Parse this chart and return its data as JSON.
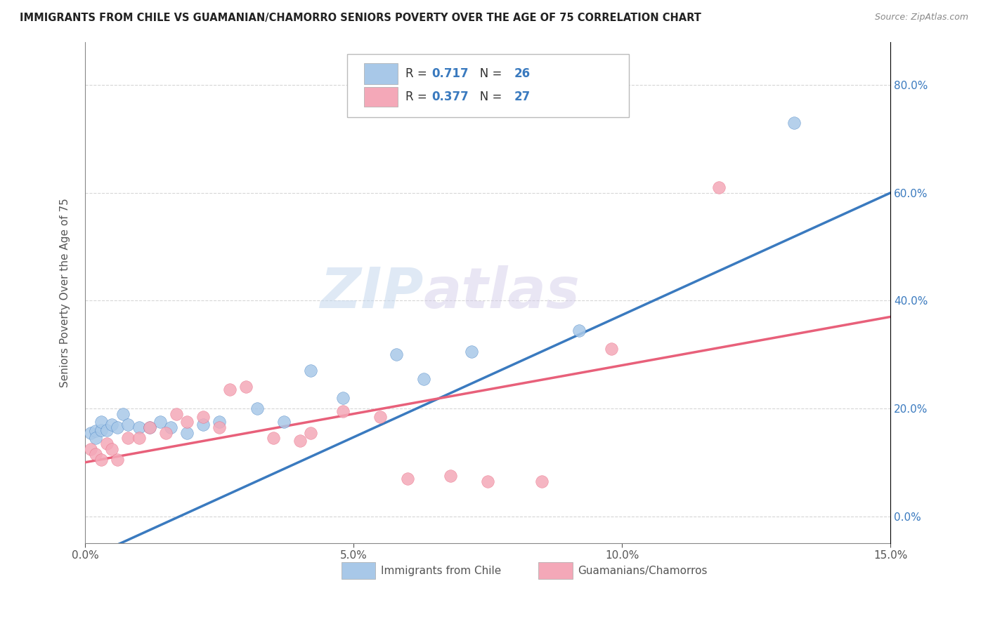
{
  "title": "IMMIGRANTS FROM CHILE VS GUAMANIAN/CHAMORRO SENIORS POVERTY OVER THE AGE OF 75 CORRELATION CHART",
  "source": "Source: ZipAtlas.com",
  "ylabel": "Seniors Poverty Over the Age of 75",
  "xlabel_ticks": [
    "0.0%",
    "5.0%",
    "10.0%",
    "15.0%"
  ],
  "xlabel_vals": [
    0.0,
    0.05,
    0.1,
    0.15
  ],
  "ylabel_ticks": [
    "0.0%",
    "20.0%",
    "40.0%",
    "60.0%",
    "80.0%"
  ],
  "ylabel_vals": [
    0.0,
    0.2,
    0.4,
    0.6,
    0.8
  ],
  "xlim": [
    0.0,
    0.15
  ],
  "ylim": [
    -0.05,
    0.88
  ],
  "chile_R": "0.717",
  "chile_N": "26",
  "guam_R": "0.377",
  "guam_N": "27",
  "chile_color": "#a8c8e8",
  "guam_color": "#f4a8b8",
  "chile_line_color": "#3a7abf",
  "guam_line_color": "#e8607a",
  "legend_label_chile": "Immigrants from Chile",
  "legend_label_guam": "Guamanians/Chamorros",
  "watermark_zip": "ZIP",
  "watermark_atlas": "atlas",
  "chile_x": [
    0.001,
    0.002,
    0.002,
    0.003,
    0.003,
    0.004,
    0.005,
    0.006,
    0.007,
    0.008,
    0.01,
    0.012,
    0.014,
    0.016,
    0.019,
    0.022,
    0.025,
    0.032,
    0.037,
    0.042,
    0.048,
    0.058,
    0.063,
    0.072,
    0.092,
    0.132
  ],
  "chile_y": [
    0.155,
    0.158,
    0.145,
    0.16,
    0.175,
    0.16,
    0.17,
    0.165,
    0.19,
    0.17,
    0.165,
    0.165,
    0.175,
    0.165,
    0.155,
    0.17,
    0.175,
    0.2,
    0.175,
    0.27,
    0.22,
    0.3,
    0.255,
    0.305,
    0.345,
    0.73
  ],
  "guam_x": [
    0.001,
    0.002,
    0.003,
    0.004,
    0.005,
    0.006,
    0.008,
    0.01,
    0.012,
    0.015,
    0.017,
    0.019,
    0.022,
    0.025,
    0.027,
    0.03,
    0.035,
    0.04,
    0.042,
    0.048,
    0.055,
    0.06,
    0.068,
    0.075,
    0.085,
    0.098,
    0.118
  ],
  "guam_y": [
    0.125,
    0.115,
    0.105,
    0.135,
    0.125,
    0.105,
    0.145,
    0.145,
    0.165,
    0.155,
    0.19,
    0.175,
    0.185,
    0.165,
    0.235,
    0.24,
    0.145,
    0.14,
    0.155,
    0.195,
    0.185,
    0.07,
    0.075,
    0.065,
    0.065,
    0.31,
    0.61
  ],
  "background_color": "#ffffff",
  "grid_color": "#cccccc"
}
